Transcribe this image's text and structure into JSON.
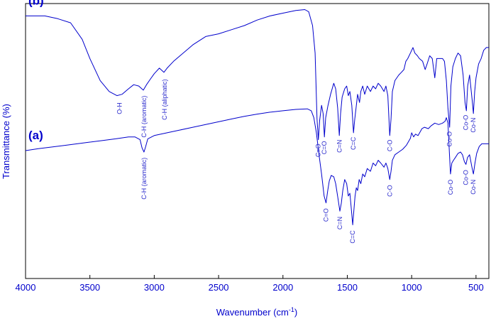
{
  "chart_data": {
    "type": "line",
    "xlabel": "Wavenumber (cm",
    "xlabel_sup": "-1",
    "xlabel_end": ")",
    "ylabel": "Transmittance (%)",
    "xlim": [
      4000,
      400
    ],
    "x_reversed": true,
    "xticks": [
      "4000",
      "3500",
      "3000",
      "2500",
      "2000",
      "1500",
      "1000",
      "500"
    ],
    "grid": false,
    "line_color": "#0000cc",
    "series": [
      {
        "name": "(b)",
        "points": [
          [
            4000,
            0.955
          ],
          [
            3850,
            0.955
          ],
          [
            3750,
            0.945
          ],
          [
            3650,
            0.93
          ],
          [
            3560,
            0.87
          ],
          [
            3500,
            0.8
          ],
          [
            3420,
            0.72
          ],
          [
            3350,
            0.68
          ],
          [
            3290,
            0.665
          ],
          [
            3250,
            0.67
          ],
          [
            3200,
            0.69
          ],
          [
            3160,
            0.705
          ],
          [
            3120,
            0.7
          ],
          [
            3085,
            0.685
          ],
          [
            3060,
            0.705
          ],
          [
            3030,
            0.725
          ],
          [
            3000,
            0.745
          ],
          [
            2960,
            0.765
          ],
          [
            2925,
            0.75
          ],
          [
            2900,
            0.765
          ],
          [
            2850,
            0.79
          ],
          [
            2800,
            0.81
          ],
          [
            2700,
            0.85
          ],
          [
            2600,
            0.88
          ],
          [
            2500,
            0.89
          ],
          [
            2400,
            0.905
          ],
          [
            2300,
            0.92
          ],
          [
            2200,
            0.94
          ],
          [
            2100,
            0.955
          ],
          [
            2000,
            0.965
          ],
          [
            1900,
            0.975
          ],
          [
            1830,
            0.978
          ],
          [
            1800,
            0.97
          ],
          [
            1770,
            0.92
          ],
          [
            1750,
            0.82
          ],
          [
            1735,
            0.58
          ],
          [
            1725,
            0.505
          ],
          [
            1715,
            0.575
          ],
          [
            1700,
            0.63
          ],
          [
            1688,
            0.6
          ],
          [
            1678,
            0.515
          ],
          [
            1668,
            0.585
          ],
          [
            1650,
            0.63
          ],
          [
            1630,
            0.67
          ],
          [
            1605,
            0.71
          ],
          [
            1590,
            0.69
          ],
          [
            1575,
            0.62
          ],
          [
            1562,
            0.52
          ],
          [
            1552,
            0.6
          ],
          [
            1540,
            0.66
          ],
          [
            1520,
            0.69
          ],
          [
            1505,
            0.7
          ],
          [
            1492,
            0.665
          ],
          [
            1480,
            0.68
          ],
          [
            1465,
            0.63
          ],
          [
            1452,
            0.53
          ],
          [
            1442,
            0.58
          ],
          [
            1432,
            0.62
          ],
          [
            1420,
            0.67
          ],
          [
            1405,
            0.64
          ],
          [
            1395,
            0.68
          ],
          [
            1380,
            0.7
          ],
          [
            1365,
            0.67
          ],
          [
            1345,
            0.7
          ],
          [
            1320,
            0.68
          ],
          [
            1300,
            0.7
          ],
          [
            1280,
            0.69
          ],
          [
            1260,
            0.71
          ],
          [
            1240,
            0.7
          ],
          [
            1215,
            0.68
          ],
          [
            1200,
            0.7
          ],
          [
            1185,
            0.665
          ],
          [
            1170,
            0.52
          ],
          [
            1160,
            0.58
          ],
          [
            1150,
            0.68
          ],
          [
            1130,
            0.72
          ],
          [
            1100,
            0.74
          ],
          [
            1080,
            0.75
          ],
          [
            1060,
            0.76
          ],
          [
            1045,
            0.79
          ],
          [
            1030,
            0.8
          ],
          [
            1010,
            0.82
          ],
          [
            990,
            0.84
          ],
          [
            975,
            0.82
          ],
          [
            955,
            0.81
          ],
          [
            940,
            0.8
          ],
          [
            915,
            0.79
          ],
          [
            895,
            0.76
          ],
          [
            880,
            0.78
          ],
          [
            860,
            0.81
          ],
          [
            840,
            0.8
          ],
          [
            820,
            0.73
          ],
          [
            805,
            0.8
          ],
          [
            790,
            0.8
          ],
          [
            760,
            0.8
          ],
          [
            745,
            0.79
          ],
          [
            730,
            0.72
          ],
          [
            718,
            0.62
          ],
          [
            705,
            0.55
          ],
          [
            695,
            0.7
          ],
          [
            680,
            0.77
          ],
          [
            660,
            0.8
          ],
          [
            640,
            0.82
          ],
          [
            620,
            0.81
          ],
          [
            600,
            0.74
          ],
          [
            585,
            0.64
          ],
          [
            575,
            0.61
          ],
          [
            565,
            0.7
          ],
          [
            550,
            0.74
          ],
          [
            530,
            0.65
          ],
          [
            520,
            0.6
          ],
          [
            510,
            0.68
          ],
          [
            500,
            0.73
          ],
          [
            480,
            0.78
          ],
          [
            460,
            0.8
          ],
          [
            440,
            0.83
          ],
          [
            420,
            0.84
          ],
          [
            400,
            0.84
          ]
        ]
      },
      {
        "name": "(a)",
        "points": [
          [
            4000,
            0.465
          ],
          [
            3900,
            0.472
          ],
          [
            3800,
            0.478
          ],
          [
            3700,
            0.484
          ],
          [
            3600,
            0.49
          ],
          [
            3500,
            0.496
          ],
          [
            3400,
            0.502
          ],
          [
            3300,
            0.508
          ],
          [
            3200,
            0.515
          ],
          [
            3150,
            0.515
          ],
          [
            3110,
            0.505
          ],
          [
            3095,
            0.475
          ],
          [
            3080,
            0.46
          ],
          [
            3068,
            0.478
          ],
          [
            3050,
            0.508
          ],
          [
            3000,
            0.52
          ],
          [
            2900,
            0.53
          ],
          [
            2800,
            0.54
          ],
          [
            2700,
            0.55
          ],
          [
            2600,
            0.56
          ],
          [
            2500,
            0.57
          ],
          [
            2400,
            0.58
          ],
          [
            2300,
            0.59
          ],
          [
            2200,
            0.598
          ],
          [
            2100,
            0.605
          ],
          [
            2000,
            0.61
          ],
          [
            1900,
            0.615
          ],
          [
            1810,
            0.617
          ],
          [
            1780,
            0.61
          ],
          [
            1760,
            0.585
          ],
          [
            1740,
            0.53
          ],
          [
            1720,
            0.45
          ],
          [
            1700,
            0.38
          ],
          [
            1680,
            0.3
          ],
          [
            1665,
            0.275
          ],
          [
            1652,
            0.32
          ],
          [
            1640,
            0.355
          ],
          [
            1625,
            0.375
          ],
          [
            1605,
            0.37
          ],
          [
            1590,
            0.345
          ],
          [
            1572,
            0.29
          ],
          [
            1558,
            0.245
          ],
          [
            1546,
            0.275
          ],
          [
            1535,
            0.32
          ],
          [
            1520,
            0.36
          ],
          [
            1505,
            0.345
          ],
          [
            1492,
            0.3
          ],
          [
            1480,
            0.31
          ],
          [
            1470,
            0.26
          ],
          [
            1458,
            0.195
          ],
          [
            1450,
            0.24
          ],
          [
            1440,
            0.3
          ],
          [
            1430,
            0.33
          ],
          [
            1420,
            0.32
          ],
          [
            1408,
            0.36
          ],
          [
            1395,
            0.345
          ],
          [
            1380,
            0.38
          ],
          [
            1365,
            0.37
          ],
          [
            1345,
            0.4
          ],
          [
            1320,
            0.39
          ],
          [
            1300,
            0.42
          ],
          [
            1280,
            0.41
          ],
          [
            1260,
            0.43
          ],
          [
            1240,
            0.42
          ],
          [
            1215,
            0.405
          ],
          [
            1200,
            0.42
          ],
          [
            1185,
            0.4
          ],
          [
            1170,
            0.36
          ],
          [
            1160,
            0.39
          ],
          [
            1150,
            0.43
          ],
          [
            1130,
            0.45
          ],
          [
            1100,
            0.46
          ],
          [
            1070,
            0.47
          ],
          [
            1040,
            0.485
          ],
          [
            1010,
            0.51
          ],
          [
            1000,
            0.53
          ],
          [
            985,
            0.515
          ],
          [
            970,
            0.525
          ],
          [
            950,
            0.52
          ],
          [
            920,
            0.545
          ],
          [
            900,
            0.55
          ],
          [
            870,
            0.545
          ],
          [
            850,
            0.555
          ],
          [
            820,
            0.565
          ],
          [
            790,
            0.56
          ],
          [
            760,
            0.565
          ],
          [
            740,
            0.572
          ],
          [
            730,
            0.585
          ],
          [
            718,
            0.565
          ],
          [
            706,
            0.45
          ],
          [
            698,
            0.38
          ],
          [
            688,
            0.42
          ],
          [
            675,
            0.43
          ],
          [
            660,
            0.44
          ],
          [
            640,
            0.455
          ],
          [
            620,
            0.46
          ],
          [
            605,
            0.45
          ],
          [
            590,
            0.425
          ],
          [
            578,
            0.415
          ],
          [
            566,
            0.44
          ],
          [
            550,
            0.45
          ],
          [
            532,
            0.405
          ],
          [
            520,
            0.38
          ],
          [
            508,
            0.42
          ],
          [
            495,
            0.455
          ],
          [
            475,
            0.48
          ],
          [
            455,
            0.49
          ],
          [
            430,
            0.49
          ],
          [
            400,
            0.49
          ]
        ]
      }
    ],
    "annotations": [
      {
        "text": "O-H",
        "x": 3270,
        "y": 0.64,
        "series": "(b)"
      },
      {
        "text": "C-H (aromatic)",
        "x": 3080,
        "y": 0.665,
        "series": "(b)"
      },
      {
        "text": "C-H (aliphatic)",
        "x": 2920,
        "y": 0.725,
        "series": "(b)"
      },
      {
        "text": "C=O",
        "x": 1725,
        "y": 0.49,
        "series": "(b)"
      },
      {
        "text": "C=O",
        "x": 1678,
        "y": 0.5,
        "series": "(b)"
      },
      {
        "text": "C=N",
        "x": 1560,
        "y": 0.505,
        "series": "(b)"
      },
      {
        "text": "C=C",
        "x": 1452,
        "y": 0.515,
        "series": "(b)"
      },
      {
        "text": "C-O",
        "x": 1170,
        "y": 0.505,
        "series": "(b)"
      },
      {
        "text": "Co-O",
        "x": 705,
        "y": 0.535,
        "series": "(b)"
      },
      {
        "text": "Co-O",
        "x": 578,
        "y": 0.595,
        "series": "(b)"
      },
      {
        "text": "Co-N",
        "x": 520,
        "y": 0.585,
        "series": "(b)"
      },
      {
        "text": "C-H (aromatic)",
        "x": 3080,
        "y": 0.44,
        "series": "(a)"
      },
      {
        "text": "C=O",
        "x": 1665,
        "y": 0.255,
        "series": "(a)"
      },
      {
        "text": "C=N",
        "x": 1558,
        "y": 0.225,
        "series": "(a)"
      },
      {
        "text": "C=C",
        "x": 1458,
        "y": 0.175,
        "series": "(a)"
      },
      {
        "text": "C-O",
        "x": 1170,
        "y": 0.34,
        "series": "(a)"
      },
      {
        "text": "Co-O",
        "x": 698,
        "y": 0.36,
        "series": "(a)"
      },
      {
        "text": "Co-O",
        "x": 578,
        "y": 0.395,
        "series": "(a)"
      },
      {
        "text": "Co-N",
        "x": 520,
        "y": 0.36,
        "series": "(a)"
      }
    ]
  }
}
